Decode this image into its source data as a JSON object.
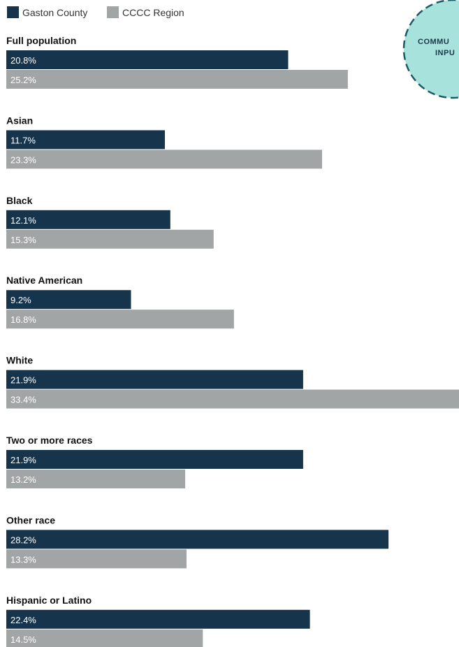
{
  "badge": {
    "line1": "COMMU",
    "line2": "INPU",
    "fill": "#a7e3dc",
    "stroke": "#1c5a63"
  },
  "colors": {
    "gaston": "#16354d",
    "cccc": "#a1a5a5"
  },
  "chart_data": {
    "type": "bar",
    "orientation": "horizontal",
    "title": "",
    "xlabel": "",
    "ylabel": "",
    "grid": false,
    "legend_position": "top-left",
    "xlim": [
      0,
      33.4
    ],
    "value_suffix": "%",
    "categories": [
      "Full population",
      "Asian",
      "Black",
      "Native American",
      "White",
      "Two or more races",
      "Other race",
      "Hispanic or Latino"
    ],
    "series": [
      {
        "name": "Gaston County",
        "color": "#16354d",
        "values": [
          20.8,
          11.7,
          12.1,
          9.2,
          21.9,
          21.9,
          28.2,
          22.4
        ],
        "labels": [
          "20.8%",
          "11.7%",
          "12.1%",
          "9.2%",
          "21.9%",
          "21.9%",
          "28.2%",
          "22.4%"
        ]
      },
      {
        "name": "CCCC Region",
        "color": "#a1a5a5",
        "values": [
          25.2,
          23.3,
          15.3,
          16.8,
          33.4,
          13.2,
          13.3,
          14.5
        ],
        "labels": [
          "25.2%",
          "23.3%",
          "15.3%",
          "16.8%",
          "33.4%",
          "13.2%",
          "13.3%",
          "14.5%"
        ]
      }
    ]
  }
}
